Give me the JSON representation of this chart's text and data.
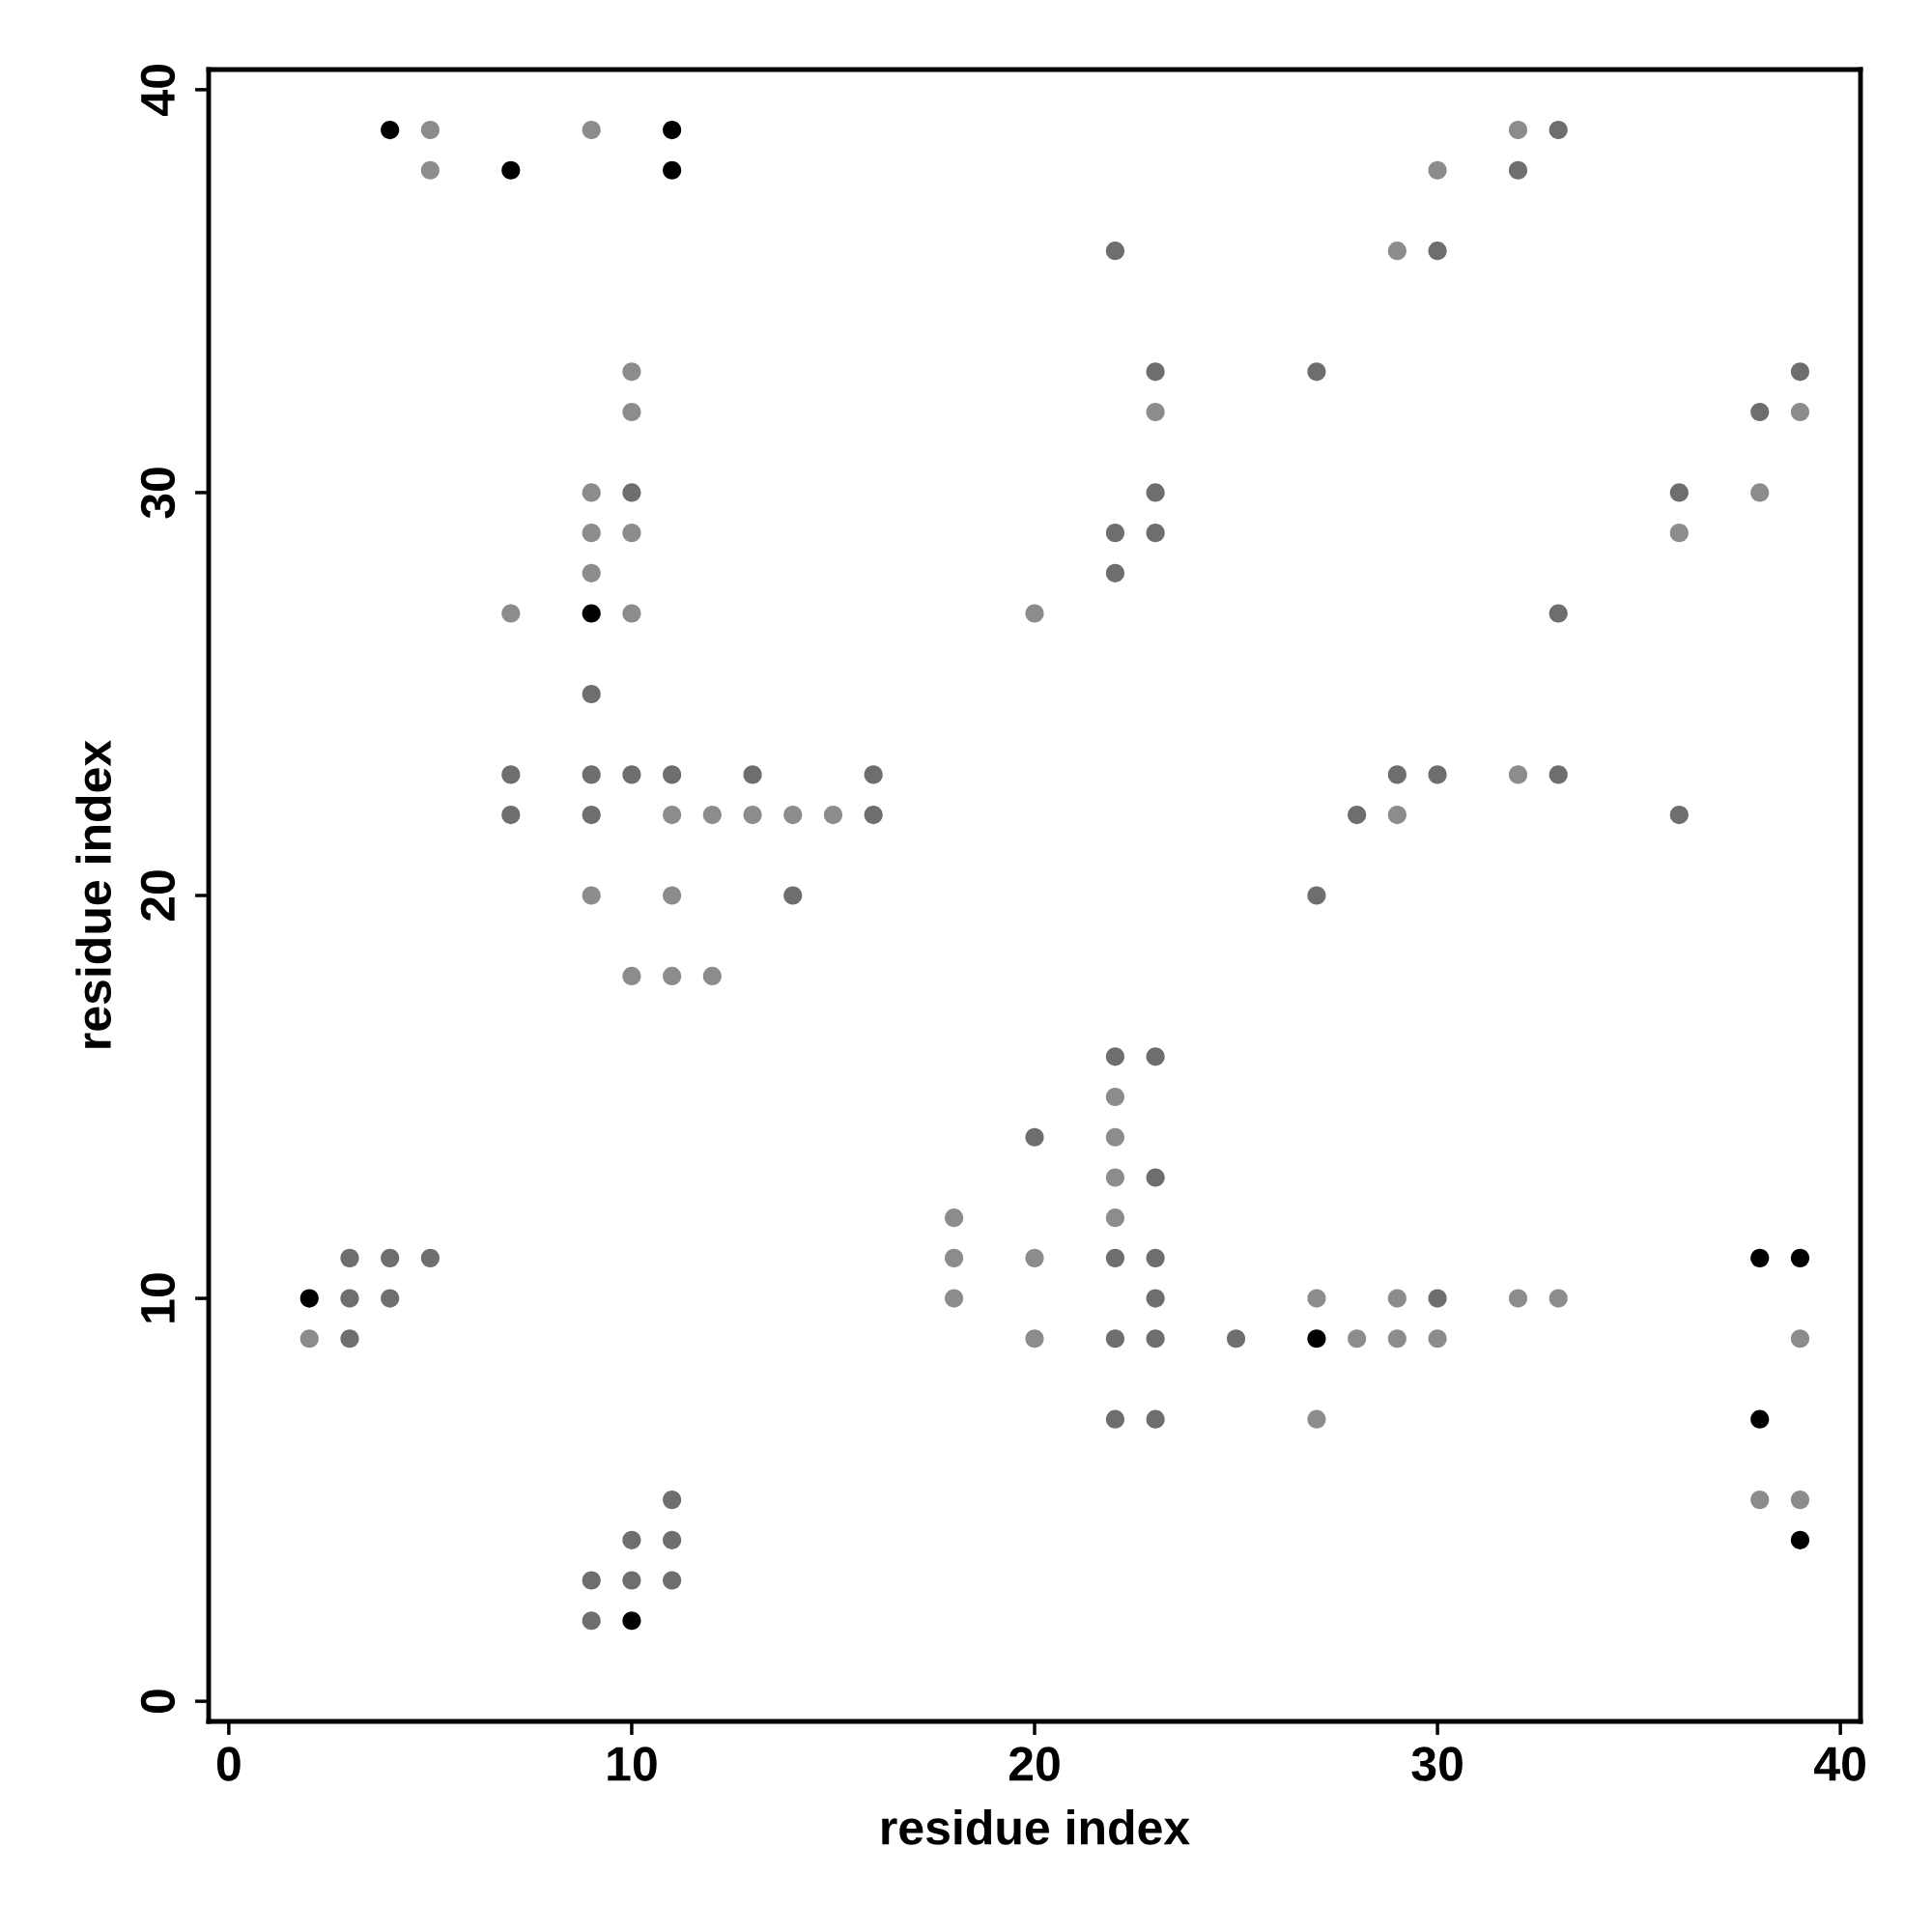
{
  "chart_data": {
    "type": "scatter",
    "xlabel": "residue index",
    "ylabel": "residue index",
    "xlim": [
      -0.5,
      40.5
    ],
    "ylim": [
      -0.5,
      40.5
    ],
    "xticks": [
      0,
      10,
      20,
      30,
      40
    ],
    "yticks": [
      0,
      10,
      20,
      30,
      40
    ],
    "marker": "circle",
    "grid": false,
    "series": [
      {
        "color": "#000000",
        "x": [
          4,
          11,
          7,
          11,
          9,
          38,
          39,
          2,
          27,
          38,
          39,
          10
        ],
        "values": [
          39,
          39,
          38,
          38,
          27,
          11,
          11,
          10,
          9,
          7,
          4,
          2
        ]
      },
      {
        "color": "#6e6e6e",
        "x": [
          33,
          32,
          22,
          30,
          23,
          27,
          39,
          38,
          10,
          23,
          36,
          22,
          23,
          22,
          33,
          9,
          7,
          9,
          10,
          11,
          13,
          16,
          29,
          30,
          33,
          7,
          9,
          16,
          28,
          36,
          14,
          27,
          22,
          23,
          20,
          23,
          3,
          4,
          5,
          22,
          23,
          3,
          4,
          23,
          30,
          3,
          22,
          23,
          25,
          22,
          23,
          11,
          10,
          11,
          9,
          10,
          11,
          9
        ],
        "values": [
          39,
          38,
          36,
          36,
          33,
          33,
          33,
          32,
          30,
          30,
          30,
          29,
          29,
          28,
          27,
          25,
          23,
          23,
          23,
          23,
          23,
          23,
          23,
          23,
          23,
          22,
          22,
          22,
          22,
          22,
          20,
          20,
          16,
          16,
          14,
          13,
          11,
          11,
          11,
          11,
          11,
          10,
          10,
          10,
          10,
          9,
          9,
          9,
          9,
          7,
          7,
          5,
          4,
          4,
          3,
          3,
          3,
          2
        ]
      },
      {
        "color": "#8c8c8c",
        "x": [
          5,
          9,
          32,
          5,
          30,
          29,
          10,
          10,
          23,
          39,
          9,
          38,
          9,
          10,
          36,
          9,
          7,
          10,
          20,
          32,
          11,
          12,
          13,
          14,
          15,
          29,
          9,
          11,
          10,
          11,
          12,
          22,
          22,
          22,
          18,
          22,
          18,
          20,
          18,
          27,
          29,
          32,
          33,
          2,
          20,
          28,
          29,
          30,
          39,
          27,
          38,
          39
        ],
        "values": [
          39,
          39,
          39,
          38,
          38,
          36,
          33,
          32,
          32,
          32,
          30,
          30,
          29,
          29,
          29,
          28,
          27,
          27,
          27,
          23,
          22,
          22,
          22,
          22,
          22,
          22,
          20,
          20,
          18,
          18,
          18,
          15,
          14,
          13,
          12,
          12,
          11,
          11,
          10,
          10,
          10,
          10,
          10,
          9,
          9,
          9,
          9,
          9,
          9,
          7,
          5,
          5
        ]
      }
    ]
  }
}
